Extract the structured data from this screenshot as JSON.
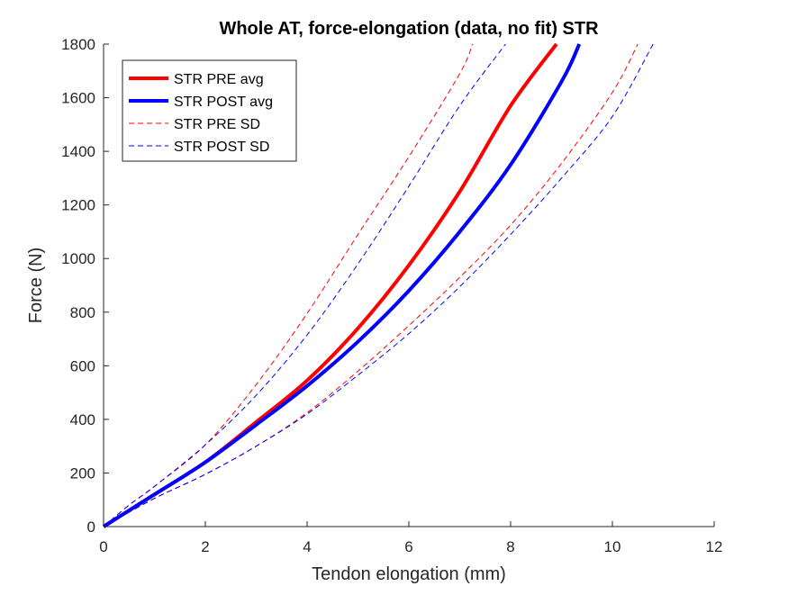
{
  "chart_data": {
    "type": "line",
    "title": "Whole AT, force-elongation (data, no fit) STR",
    "xlabel": "Tendon elongation (mm)",
    "ylabel": "Force (N)",
    "xlim": [
      0,
      12
    ],
    "ylim": [
      0,
      1800
    ],
    "xticks": [
      "0",
      "2",
      "4",
      "6",
      "8",
      "10",
      "12"
    ],
    "yticks": [
      "0",
      "200",
      "400",
      "600",
      "800",
      "1000",
      "1200",
      "1400",
      "1600",
      "1800"
    ],
    "grid": false,
    "legend_position": "top-left",
    "series": [
      {
        "name": "STR PRE avg",
        "color": "#ff0000",
        "style": "solid",
        "x": [
          0,
          0.5,
          1,
          2,
          3,
          4,
          5,
          6,
          7,
          8,
          8.9
        ],
        "y": [
          0,
          60,
          120,
          240,
          390,
          545,
          740,
          975,
          1250,
          1570,
          1800
        ]
      },
      {
        "name": "STR POST avg",
        "color": "#0000ff",
        "style": "solid",
        "x": [
          0,
          0.5,
          1,
          2,
          3,
          4,
          5,
          6,
          7,
          8,
          9,
          9.35
        ],
        "y": [
          0,
          60,
          120,
          240,
          380,
          525,
          690,
          880,
          1100,
          1350,
          1660,
          1800
        ]
      },
      {
        "name": "STR PRE SD",
        "color": "#ff0000",
        "style": "dashed",
        "x": [
          0,
          0.5,
          1,
          2,
          3,
          4,
          5,
          6,
          7,
          7.25
        ],
        "y": [
          0,
          80,
          150,
          305,
          530,
          795,
          1090,
          1380,
          1690,
          1800
        ]
      },
      {
        "name": "STR POST SD",
        "color": "#0000ff",
        "style": "dashed",
        "x": [
          0,
          0.5,
          1,
          2,
          3,
          4,
          5,
          6,
          7,
          7.9
        ],
        "y": [
          0,
          80,
          150,
          305,
          490,
          715,
          980,
          1270,
          1570,
          1800
        ]
      },
      {
        "name": "",
        "color": "#ff0000",
        "style": "dashed",
        "x": [
          0,
          1,
          2,
          3,
          4,
          5,
          6,
          7,
          8,
          9,
          10,
          10.5
        ],
        "y": [
          0,
          105,
          195,
          300,
          425,
          580,
          750,
          930,
          1125,
          1355,
          1620,
          1800
        ]
      },
      {
        "name": "",
        "color": "#0000ff",
        "style": "dashed",
        "x": [
          0,
          1,
          2,
          3,
          4,
          5,
          6,
          7,
          8,
          9,
          10,
          10.8
        ],
        "y": [
          0,
          105,
          195,
          300,
          420,
          565,
          720,
          895,
          1090,
          1300,
          1530,
          1800
        ]
      }
    ]
  }
}
